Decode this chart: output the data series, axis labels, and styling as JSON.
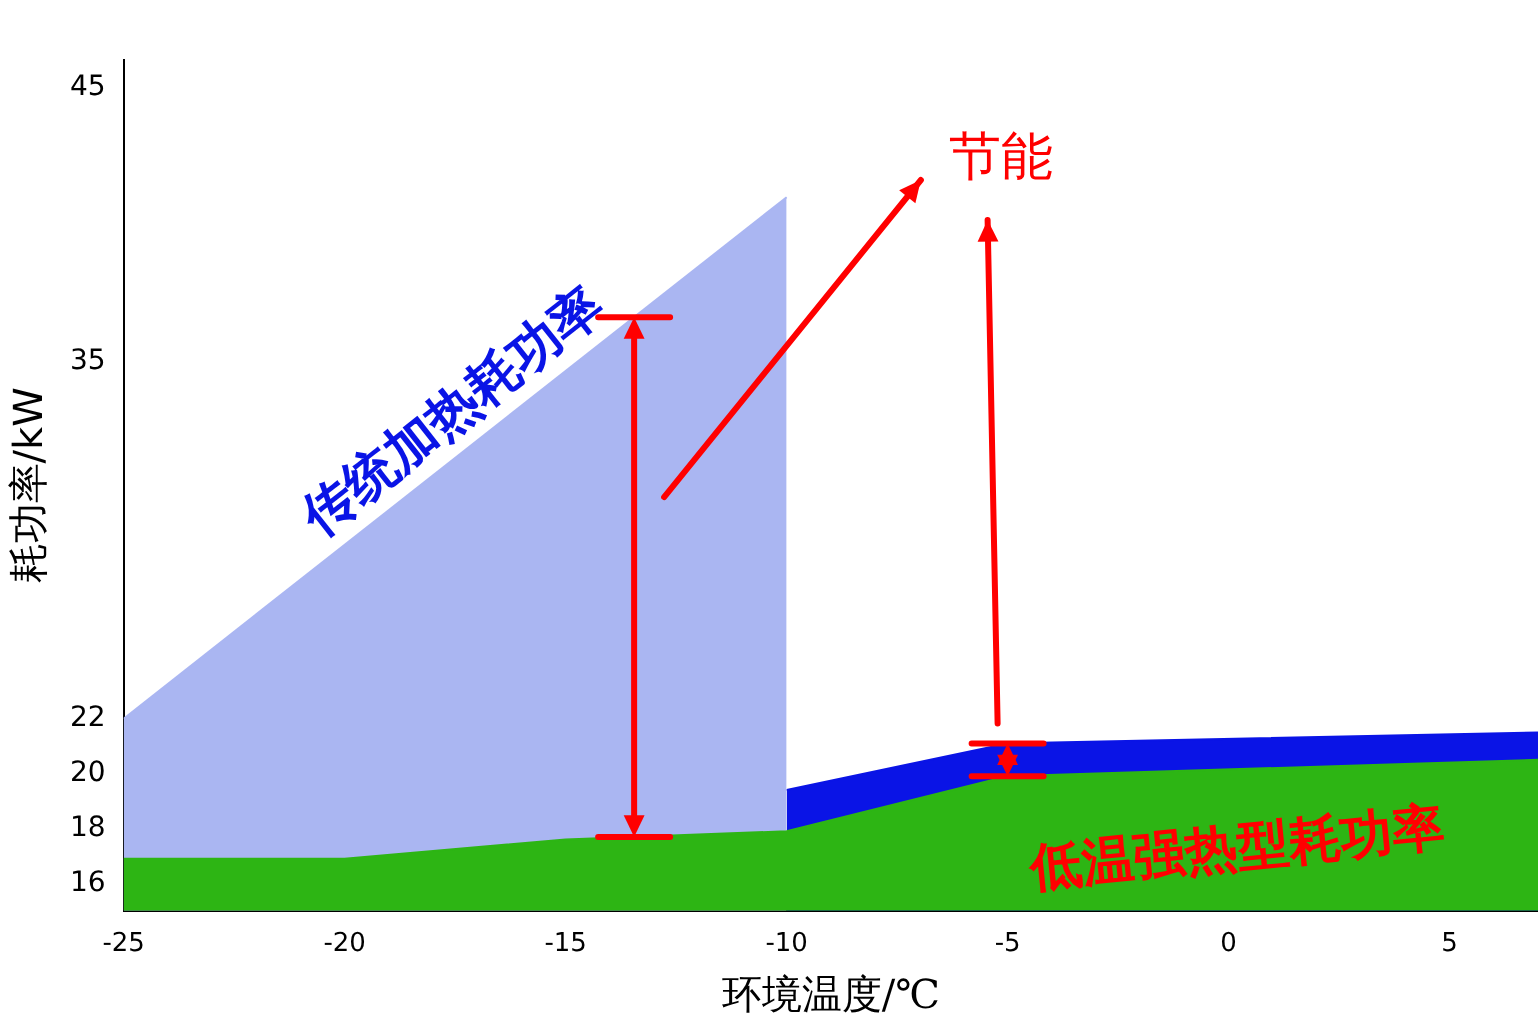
{
  "chart_data": {
    "type": "area",
    "xlabel": "环境温度/℃",
    "ylabel": "耗功率/kW",
    "xlim": [
      -25,
      7
    ],
    "xticks": [
      -25,
      -20,
      -15,
      -10,
      -5,
      0,
      5
    ],
    "ylim": [
      15,
      46
    ],
    "yticks": [
      16,
      18,
      20,
      22,
      35,
      45
    ],
    "series": [
      {
        "name": "低温强热型耗功率",
        "color": "#2db514",
        "x": [
          -25,
          -20,
          -15,
          -10,
          -5,
          7
        ],
        "values": [
          16.9,
          16.9,
          17.6,
          17.9,
          19.9,
          20.5
        ]
      },
      {
        "name": "传统加热耗功率",
        "color": "#aab6f2",
        "x": [
          -25,
          -10
        ],
        "values": [
          22,
          41
        ]
      },
      {
        "color": "#0a14e6",
        "x": [
          -10,
          -5,
          7
        ],
        "values": [
          19.4,
          21.1,
          21.5
        ]
      }
    ],
    "annotations": [
      "节能"
    ],
    "grid": false,
    "legend": false
  }
}
